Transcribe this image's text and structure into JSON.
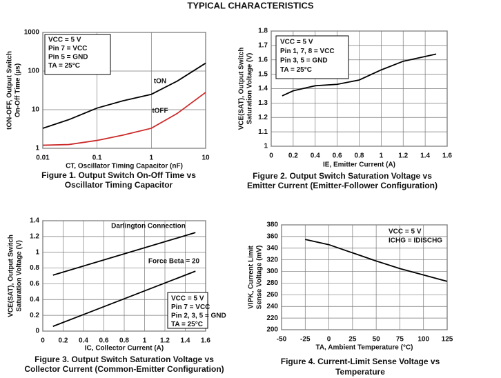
{
  "page_title": "TYPICAL CHARACTERISTICS",
  "chart_data": [
    {
      "type": "line",
      "title": [
        "Figure 1. Output Switch On-Off Time vs",
        "Oscillator Timing Capacitor"
      ],
      "xlabel": "CT, Oscillator Timing Capacitor (nF)",
      "ylabel": [
        "tON-OFF, Output Switch",
        "On-Off Time (µs)"
      ],
      "notes": [
        "VCC = 5 V",
        "Pin 7 = VCC",
        "Pin 5 = GND",
        "TA = 25°C"
      ],
      "notes_box": true,
      "xscale": "log",
      "yscale": "log",
      "grid": true,
      "xlim": [
        0.01,
        10
      ],
      "ylim": [
        1,
        1000
      ],
      "xticks": [
        0.01,
        0.1,
        1,
        10
      ],
      "yticks": [
        1,
        10,
        100,
        1000
      ],
      "x": [
        0.01,
        0.03,
        0.1,
        0.3,
        1,
        3,
        10
      ],
      "series": [
        {
          "name": "tON",
          "color": "#000000",
          "values": [
            3.3,
            5.5,
            11,
            17,
            25,
            55,
            160
          ]
        },
        {
          "name": "tOFF",
          "color": "#cc2a2a",
          "values": [
            1.2,
            1.25,
            1.6,
            2.2,
            3.3,
            8,
            28
          ]
        }
      ]
    },
    {
      "type": "line",
      "title": [
        "Figure 2. Output Switch Saturation Voltage vs",
        "Emitter Current (Emitter-Follower Configuration)"
      ],
      "xlabel": "IE, Emitter Current (A)",
      "ylabel": [
        "VCE(SAT), Output Switch",
        "Saturation Voltage (V)"
      ],
      "notes": [
        "VCC = 5 V",
        "Pin 1, 7, 8 = VCC",
        "Pin 3, 5 = GND",
        "TA = 25°C"
      ],
      "notes_box": true,
      "grid": true,
      "xlim": [
        0,
        1.6
      ],
      "ylim": [
        1,
        1.8
      ],
      "xticks": [
        0,
        0.2,
        0.4,
        0.6,
        0.8,
        1,
        1.2,
        1.4,
        1.6
      ],
      "yticks": [
        1,
        1.1,
        1.2,
        1.3,
        1.4,
        1.5,
        1.6,
        1.7,
        1.8
      ],
      "x": [
        0.1,
        0.2,
        0.4,
        0.6,
        0.8,
        1,
        1.2,
        1.5
      ],
      "series": [
        {
          "color": "#000000",
          "values": [
            1.35,
            1.385,
            1.42,
            1.43,
            1.46,
            1.53,
            1.59,
            1.64
          ]
        }
      ]
    },
    {
      "type": "line",
      "title": [
        "Figure 3. Output Switch Saturation Voltage vs",
        "Collector Current (Common-Emitter Configuration)"
      ],
      "xlabel": "IC, Collector Current (A)",
      "ylabel": [
        "VCE(SAT), Output Switch",
        "Saturation Voltage (V)"
      ],
      "notes": [
        "VCC = 5 V",
        "Pin 7 = VCC",
        "Pin 2, 3, 5 = GND",
        "TA = 25°C"
      ],
      "notes_box": true,
      "grid": true,
      "xlim": [
        0,
        1.6
      ],
      "ylim": [
        0,
        1.4
      ],
      "xticks": [
        0,
        0.2,
        0.4,
        0.6,
        0.8,
        1,
        1.2,
        1.4,
        1.6
      ],
      "yticks": [
        0,
        0.2,
        0.4,
        0.6,
        0.8,
        1,
        1.2,
        1.4
      ],
      "x": [
        0.1,
        1.5
      ],
      "series": [
        {
          "name": "Darlington Connection",
          "color": "#000000",
          "values": [
            0.71,
            1.25
          ]
        },
        {
          "name": "Force Beta = 20",
          "color": "#000000",
          "values": [
            0.06,
            0.76
          ]
        }
      ]
    },
    {
      "type": "line",
      "title": [
        "Figure 4. Current-Limit Sense Voltage vs",
        "Temperature"
      ],
      "xlabel": "TA, Ambient Temperature (°C)",
      "ylabel": [
        "VIPK, Current Limit",
        "Sense Voltage (mV)"
      ],
      "notes": [
        "VCC = 5 V",
        "ICHG = IDISCHG"
      ],
      "notes_box": false,
      "grid": true,
      "xlim": [
        -50,
        125
      ],
      "ylim": [
        200,
        380
      ],
      "xticks": [
        -50,
        -25,
        0,
        25,
        50,
        75,
        100,
        125
      ],
      "yticks": [
        200,
        220,
        240,
        260,
        280,
        300,
        320,
        340,
        360,
        380
      ],
      "x": [
        -25,
        0,
        25,
        50,
        75,
        100,
        125
      ],
      "series": [
        {
          "color": "#000000",
          "values": [
            355,
            346,
            332,
            318,
            305,
            294,
            283
          ]
        }
      ]
    }
  ]
}
